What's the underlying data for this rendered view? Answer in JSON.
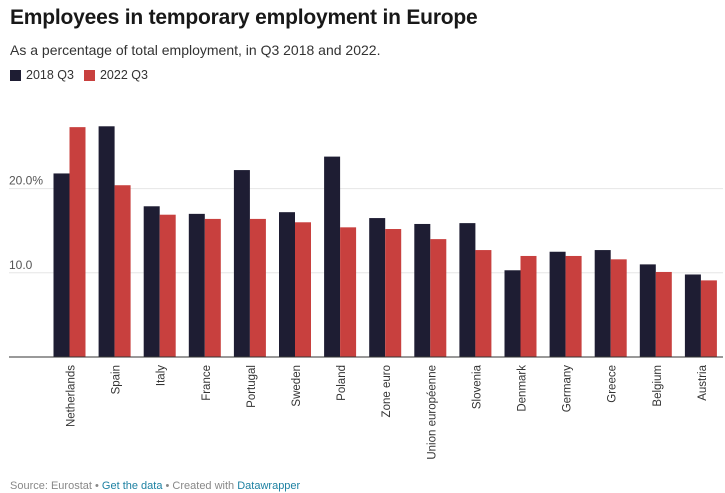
{
  "header": {
    "title": "Employees in temporary employment in Europe",
    "subtitle": "As a percentage of total employment, in Q3 2018 and 2022."
  },
  "colors": {
    "series_2018": "#1e1d33",
    "series_2022": "#c8403e",
    "grid": "#e6e6e6",
    "axis": "#333333"
  },
  "footer": {
    "source": "Source: Eurostat",
    "sep1": " • ",
    "get_data": "Get the data",
    "sep2": " • Created with ",
    "tool": "Datawrapper"
  },
  "chart_data": {
    "type": "bar",
    "title": "Employees in temporary employment in Europe",
    "categories": [
      "Netherlands",
      "Spain",
      "Italy",
      "France",
      "Portugal",
      "Sweden",
      "Poland",
      "Zone euro",
      "Union européenne",
      "Slovenia",
      "Denmark",
      "Germany",
      "Greece",
      "Belgium",
      "Austria"
    ],
    "series": [
      {
        "name": "2018 Q3",
        "values": [
          21.8,
          27.4,
          17.9,
          17.0,
          22.2,
          17.2,
          23.8,
          16.5,
          15.8,
          15.9,
          10.3,
          12.5,
          12.7,
          11.0,
          9.8
        ]
      },
      {
        "name": "2022 Q3",
        "values": [
          27.3,
          20.4,
          16.9,
          16.4,
          16.4,
          16.0,
          15.4,
          15.2,
          14.0,
          12.7,
          12.0,
          12.0,
          11.6,
          10.1,
          9.1
        ]
      }
    ],
    "yticks": [
      10,
      20
    ],
    "ytick_labels": [
      "10.0",
      "20.0%"
    ],
    "ylim": [
      0,
      30
    ],
    "xlabel": "",
    "ylabel": "",
    "grid": true,
    "legend": "top-left"
  }
}
